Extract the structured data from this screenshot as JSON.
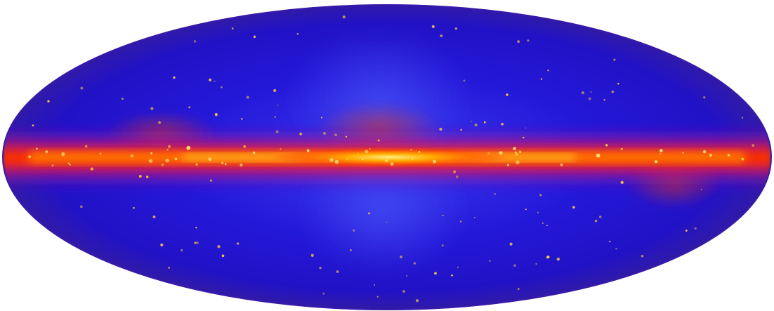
{
  "image": {
    "projection": "Aitoff all-sky",
    "background_color": "#ffffff",
    "palette": {
      "sky_base": "#2418d8",
      "sky_deep": "#1a0fb8",
      "sky_light": "#3a44ff",
      "rim": "#3a1aa8",
      "plane_outer": "#d0107a",
      "plane_mid": "#ff1a00",
      "plane_core": "#ffb000",
      "plane_peak": "#ffee80",
      "point_source": "#ffd23c"
    },
    "features": [
      "galactic-plane-band",
      "galactic-center-bright-core",
      "fermi-bubble-lobes",
      "point-sources"
    ]
  }
}
